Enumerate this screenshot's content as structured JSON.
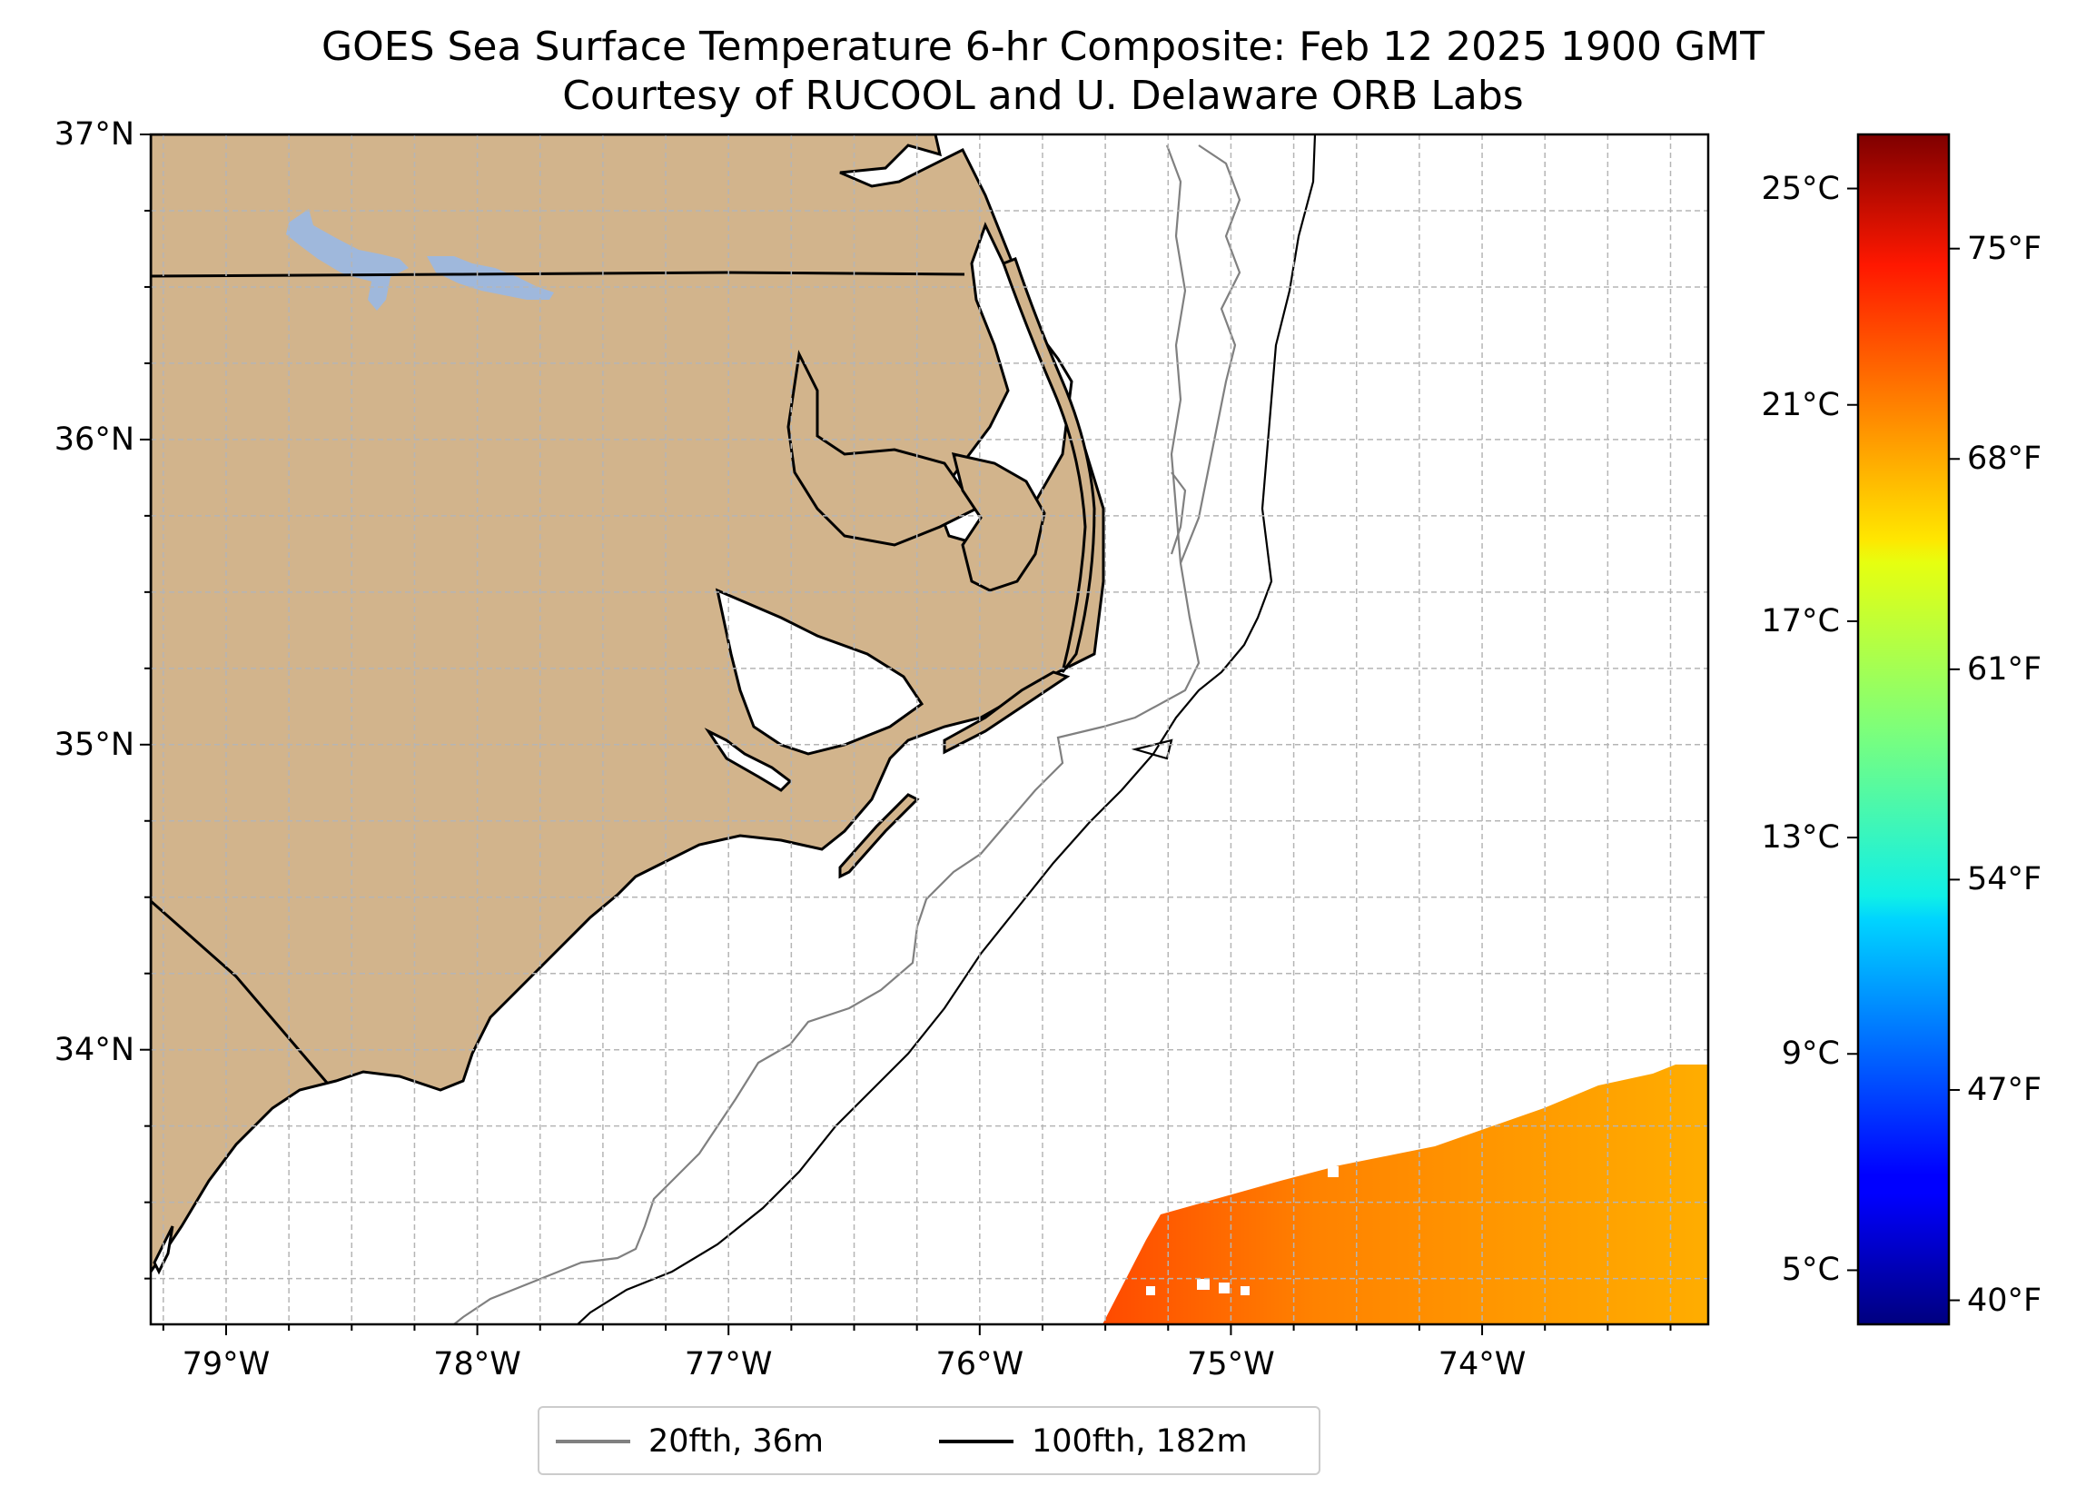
{
  "title": {
    "line1": "GOES Sea Surface Temperature 6-hr Composite: Feb 12 2025 1900 GMT",
    "line2": "Courtesy of RUCOOL and U. Delaware ORB Labs"
  },
  "map": {
    "lon_range": [
      -79.3,
      -73.1
    ],
    "lat_range": [
      33.1,
      37.0
    ],
    "grid": true,
    "lat_ticks": [
      {
        "value": 37,
        "label": "37°N"
      },
      {
        "value": 36,
        "label": "36°N"
      },
      {
        "value": 35,
        "label": "35°N"
      },
      {
        "value": 34,
        "label": "34°N"
      }
    ],
    "lon_ticks": [
      {
        "value": -79,
        "label": "79°W"
      },
      {
        "value": -78,
        "label": "78°W"
      },
      {
        "value": -77,
        "label": "77°W"
      },
      {
        "value": -76,
        "label": "76°W"
      },
      {
        "value": -75,
        "label": "75°W"
      },
      {
        "value": -74,
        "label": "74°W"
      }
    ],
    "colors": {
      "land": "#d2b48c",
      "lake": "#9fb8dc",
      "ocean": "#ffffff",
      "grid": "#b5b5b5"
    }
  },
  "colorbar": {
    "colormap": "jet",
    "range_c": [
      4.0,
      26.0
    ],
    "celsius_ticks": [
      {
        "value": 25,
        "label": "25°C"
      },
      {
        "value": 21,
        "label": "21°C"
      },
      {
        "value": 17,
        "label": "17°C"
      },
      {
        "value": 13,
        "label": "13°C"
      },
      {
        "value": 9,
        "label": "9°C"
      },
      {
        "value": 5,
        "label": "5°C"
      }
    ],
    "fahrenheit_ticks": [
      {
        "value": 75,
        "label": "75°F"
      },
      {
        "value": 68,
        "label": "68°F"
      },
      {
        "value": 61,
        "label": "61°F"
      },
      {
        "value": 54,
        "label": "54°F"
      },
      {
        "value": 47,
        "label": "47°F"
      },
      {
        "value": 40,
        "label": "40°F"
      }
    ]
  },
  "legend": {
    "items": [
      {
        "label": "20fth, 36m",
        "color": "#808080"
      },
      {
        "label": "100fth, 182m",
        "color": "#000000"
      }
    ]
  },
  "sst_field": {
    "region": "southeast corner of map, south of about 33.9°N and east of about 75.5°W",
    "range_c": [
      21.0,
      23.0
    ],
    "colors": {
      "west": "#ff4a00",
      "central": "#ff8800",
      "east": "#ffac00"
    }
  }
}
